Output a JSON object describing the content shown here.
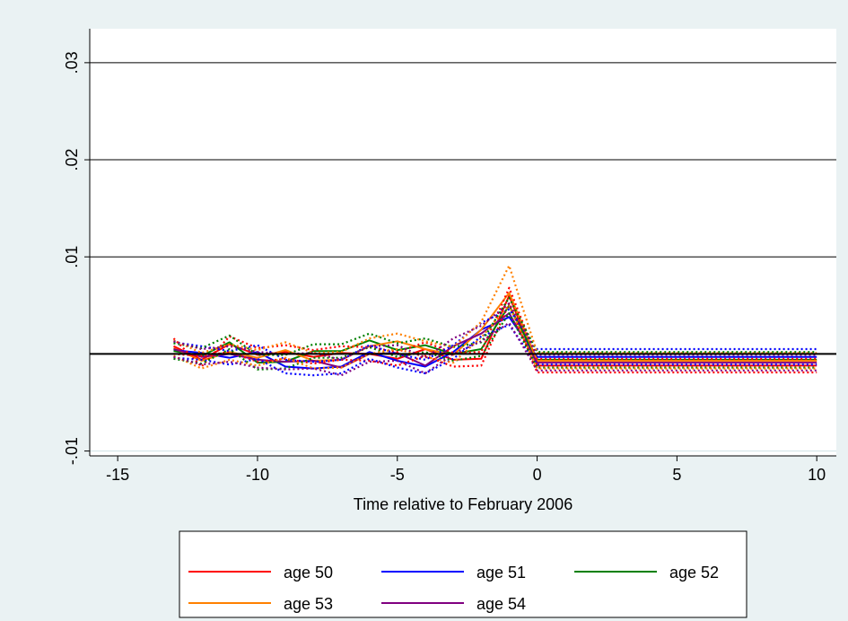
{
  "chart_data": {
    "type": "line",
    "title": "",
    "xlabel": "Time relative to February 2006",
    "ylabel": "",
    "xlim": [
      -16,
      10.7
    ],
    "ylim": [
      -0.0105,
      0.0335
    ],
    "xticks": [
      -15,
      -10,
      -5,
      0,
      5,
      10
    ],
    "yticks": [
      -0.01,
      0.01,
      0.02,
      0.03
    ],
    "ytick_labels": [
      "-.01",
      ".01",
      ".02",
      ".03"
    ],
    "grid": true,
    "legend": {
      "position": "bottom",
      "columns": 3
    },
    "colors": {
      "background": "#eaf2f3",
      "plot_bg": "#ffffff",
      "grid": "#000000",
      "zero_line": "#000000"
    },
    "x": [
      -13,
      -12,
      -11,
      -10,
      -9,
      -8,
      -7,
      -6,
      -5,
      -4,
      -3,
      -2,
      -1,
      0,
      1,
      2,
      3,
      4,
      5,
      6,
      7,
      8,
      9,
      10
    ],
    "series": [
      {
        "name": "age 50",
        "color": "#ff0000",
        "style": "solid",
        "values": [
          0.0008,
          -0.0006,
          0.001,
          -0.0001,
          0.0002,
          -0.0003,
          0.0001,
          0.0,
          -0.0005,
          0.0005,
          -0.0006,
          -0.0005,
          0.006,
          -0.0012,
          -0.0012,
          -0.0012,
          -0.0012,
          -0.0012,
          -0.0012,
          -0.0012,
          -0.0012,
          -0.0012,
          -0.0012,
          -0.0012
        ]
      },
      {
        "name": "age 51",
        "color": "#0000ff",
        "style": "solid",
        "values": [
          0.0004,
          0.0001,
          -0.0004,
          0.0002,
          -0.0013,
          -0.0015,
          -0.0013,
          0.0002,
          -0.0007,
          -0.0013,
          0.0002,
          0.0025,
          0.0038,
          -0.0003,
          -0.0003,
          -0.0003,
          -0.0003,
          -0.0003,
          -0.0003,
          -0.0003,
          -0.0003,
          -0.0003,
          -0.0003,
          -0.0003
        ]
      },
      {
        "name": "age 52",
        "color": "#008000",
        "style": "solid",
        "values": [
          0.0003,
          -0.0002,
          0.0012,
          -0.0009,
          -0.0008,
          0.0003,
          0.0003,
          0.0014,
          0.0004,
          0.0009,
          0.0,
          0.0005,
          0.005,
          -0.0006,
          -0.0006,
          -0.0006,
          -0.0006,
          -0.0006,
          -0.0006,
          -0.0006,
          -0.0006,
          -0.0006,
          -0.0006,
          -0.0006
        ]
      },
      {
        "name": "age 53",
        "color": "#ff8000",
        "style": "solid",
        "values": [
          0.0006,
          -0.0007,
          0.0002,
          -0.0004,
          0.0004,
          -0.0007,
          -0.0006,
          0.0008,
          0.0013,
          0.0005,
          -0.0001,
          0.0025,
          0.0063,
          -0.0007,
          -0.0007,
          -0.0007,
          -0.0007,
          -0.0007,
          -0.0007,
          -0.0007,
          -0.0007,
          -0.0007,
          -0.0007,
          -0.0007
        ]
      },
      {
        "name": "age 54",
        "color": "#800080",
        "style": "solid",
        "values": [
          0.0005,
          -0.0003,
          0.0,
          -0.0006,
          -0.0008,
          -0.0007,
          -0.0014,
          0.0,
          0.0001,
          -0.0012,
          0.0008,
          0.0021,
          0.0042,
          -0.0009,
          -0.0009,
          -0.0009,
          -0.0009,
          -0.0009,
          -0.0009,
          -0.0009,
          -0.0009,
          -0.0009,
          -0.0009,
          -0.0009
        ]
      },
      {
        "name": "",
        "color": "#ff0000",
        "style": "dotted",
        "values": [
          0.0016,
          -0.0013,
          0.0018,
          0.0006,
          0.0009,
          0.0004,
          0.0008,
          0.0007,
          0.0002,
          0.0012,
          0.0001,
          0.0002,
          0.0068,
          -0.0005,
          -0.0005,
          -0.0005,
          -0.0005,
          -0.0005,
          -0.0005,
          -0.0005,
          -0.0005,
          -0.0005,
          -0.0005,
          -0.0005
        ]
      },
      {
        "name": "",
        "color": "#ff0000",
        "style": "dotted",
        "values": [
          0.0,
          -0.0002,
          0.0002,
          -0.0008,
          -0.0005,
          -0.001,
          -0.0006,
          -0.0007,
          -0.0012,
          -0.0002,
          -0.0013,
          -0.0012,
          0.0052,
          -0.0019,
          -0.0019,
          -0.0019,
          -0.0019,
          -0.0019,
          -0.0019,
          -0.0019,
          -0.0019,
          -0.0019,
          -0.0019,
          -0.0019
        ]
      },
      {
        "name": "",
        "color": "#0000ff",
        "style": "dotted",
        "values": [
          0.0012,
          0.0008,
          0.0003,
          0.0009,
          -0.0006,
          -0.0008,
          -0.0006,
          0.0009,
          0.0,
          -0.0006,
          0.0009,
          0.0032,
          0.0046,
          0.0005,
          0.0005,
          0.0005,
          0.0005,
          0.0005,
          0.0005,
          0.0005,
          0.0005,
          0.0005,
          0.0005,
          0.0005
        ]
      },
      {
        "name": "",
        "color": "#0000ff",
        "style": "dotted",
        "values": [
          -0.0004,
          -0.0006,
          -0.0011,
          -0.0005,
          -0.002,
          -0.0022,
          -0.002,
          -0.0005,
          -0.0014,
          -0.002,
          -0.0005,
          0.0018,
          0.003,
          -0.0011,
          -0.0011,
          -0.0011,
          -0.0011,
          -0.0011,
          -0.0011,
          -0.0011,
          -0.0011,
          -0.0011,
          -0.0011,
          -0.0011
        ]
      },
      {
        "name": "",
        "color": "#008000",
        "style": "dotted",
        "values": [
          0.0011,
          0.0006,
          0.0019,
          -0.0001,
          -0.0001,
          0.001,
          0.001,
          0.0021,
          0.0011,
          0.0016,
          0.0007,
          0.0012,
          0.0058,
          0.0002,
          0.0002,
          0.0002,
          0.0002,
          0.0002,
          0.0002,
          0.0002,
          0.0002,
          0.0002,
          0.0002,
          0.0002
        ]
      },
      {
        "name": "",
        "color": "#008000",
        "style": "dotted",
        "values": [
          -0.0005,
          -0.001,
          0.0005,
          -0.0016,
          -0.0015,
          -0.0004,
          -0.0004,
          0.0007,
          -0.0003,
          0.0002,
          -0.0007,
          -0.0002,
          0.0042,
          -0.0014,
          -0.0014,
          -0.0014,
          -0.0014,
          -0.0014,
          -0.0014,
          -0.0014,
          -0.0014,
          -0.0014,
          -0.0014,
          -0.0014
        ]
      },
      {
        "name": "",
        "color": "#ff8000",
        "style": "dotted",
        "values": [
          0.0014,
          0.0001,
          0.001,
          0.0004,
          0.0012,
          0.0001,
          0.0002,
          0.0016,
          0.0021,
          0.0013,
          0.0007,
          0.0033,
          0.0091,
          0.0001,
          0.0001,
          0.0001,
          0.0001,
          0.0001,
          0.0001,
          0.0001,
          0.0001,
          0.0001,
          0.0001,
          0.0001
        ]
      },
      {
        "name": "",
        "color": "#ff8000",
        "style": "dotted",
        "values": [
          -0.0002,
          -0.0015,
          -0.0006,
          -0.0012,
          -0.0004,
          -0.0015,
          -0.0014,
          0.0,
          0.0005,
          -0.0003,
          -0.0009,
          0.0017,
          0.005,
          -0.0015,
          -0.0015,
          -0.0015,
          -0.0015,
          -0.0015,
          -0.0015,
          -0.0015,
          -0.0015,
          -0.0015,
          -0.0015,
          -0.0015
        ]
      },
      {
        "name": "",
        "color": "#800080",
        "style": "dotted",
        "values": [
          0.0013,
          0.0005,
          0.0008,
          0.0002,
          0.0,
          0.0001,
          -0.0006,
          0.0008,
          0.0009,
          -0.0004,
          0.0016,
          0.0029,
          0.0052,
          -0.0001,
          -0.0001,
          -0.0001,
          -0.0001,
          -0.0001,
          -0.0001,
          -0.0001,
          -0.0001,
          -0.0001,
          -0.0001,
          -0.0001
        ]
      },
      {
        "name": "",
        "color": "#800080",
        "style": "dotted",
        "values": [
          -0.0003,
          -0.0011,
          -0.0008,
          -0.0014,
          -0.0016,
          -0.0015,
          -0.0022,
          -0.0008,
          -0.0007,
          -0.002,
          0.0,
          0.0013,
          0.0032,
          -0.0017,
          -0.0017,
          -0.0017,
          -0.0017,
          -0.0017,
          -0.0017,
          -0.0017,
          -0.0017,
          -0.0017,
          -0.0017,
          -0.0017
        ]
      }
    ],
    "legend_entries": [
      "age 50",
      "age 51",
      "age 52",
      "age 53",
      "age 54"
    ]
  }
}
